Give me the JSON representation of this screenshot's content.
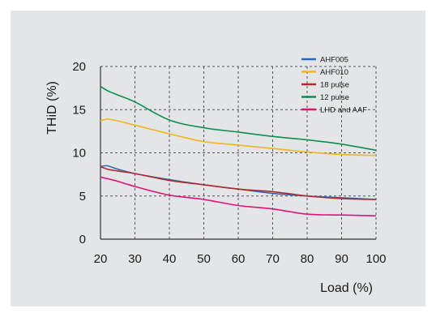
{
  "chart_data": {
    "type": "line",
    "title": "",
    "xlabel": "Load (%)",
    "ylabel": "THiD (%)",
    "xlim": [
      20,
      100
    ],
    "ylim": [
      0,
      20
    ],
    "xticks": [
      20,
      30,
      40,
      50,
      60,
      70,
      80,
      90,
      100
    ],
    "yticks": [
      0,
      5,
      10,
      15,
      20
    ],
    "grid": "dashed",
    "legend": "top-right",
    "x": [
      20,
      22,
      25,
      30,
      40,
      50,
      60,
      70,
      80,
      90,
      100
    ],
    "series": [
      {
        "name": "AHF005",
        "color": "#2a6db5",
        "values": [
          8.4,
          8.5,
          8.1,
          7.6,
          6.9,
          6.3,
          5.8,
          5.3,
          5.0,
          4.8,
          4.6
        ]
      },
      {
        "name": "AHF010",
        "color": "#f2b51c",
        "values": [
          13.7,
          13.9,
          13.7,
          13.2,
          12.2,
          11.3,
          10.9,
          10.5,
          10.1,
          9.8,
          9.7
        ]
      },
      {
        "name": "18 pulse",
        "color": "#b3282d",
        "values": [
          8.4,
          8.1,
          7.9,
          7.6,
          6.8,
          6.3,
          5.8,
          5.5,
          5.0,
          4.7,
          4.6
        ]
      },
      {
        "name": "12 pulse",
        "color": "#0b8f53",
        "values": [
          17.7,
          17.2,
          16.7,
          15.9,
          13.8,
          12.9,
          12.4,
          11.9,
          11.5,
          11.0,
          10.3
        ]
      },
      {
        "name": "LHD and AAF",
        "color": "#e0137b",
        "values": [
          7.2,
          7.0,
          6.7,
          6.1,
          5.1,
          4.6,
          3.9,
          3.5,
          2.9,
          2.8,
          2.7
        ]
      }
    ]
  }
}
